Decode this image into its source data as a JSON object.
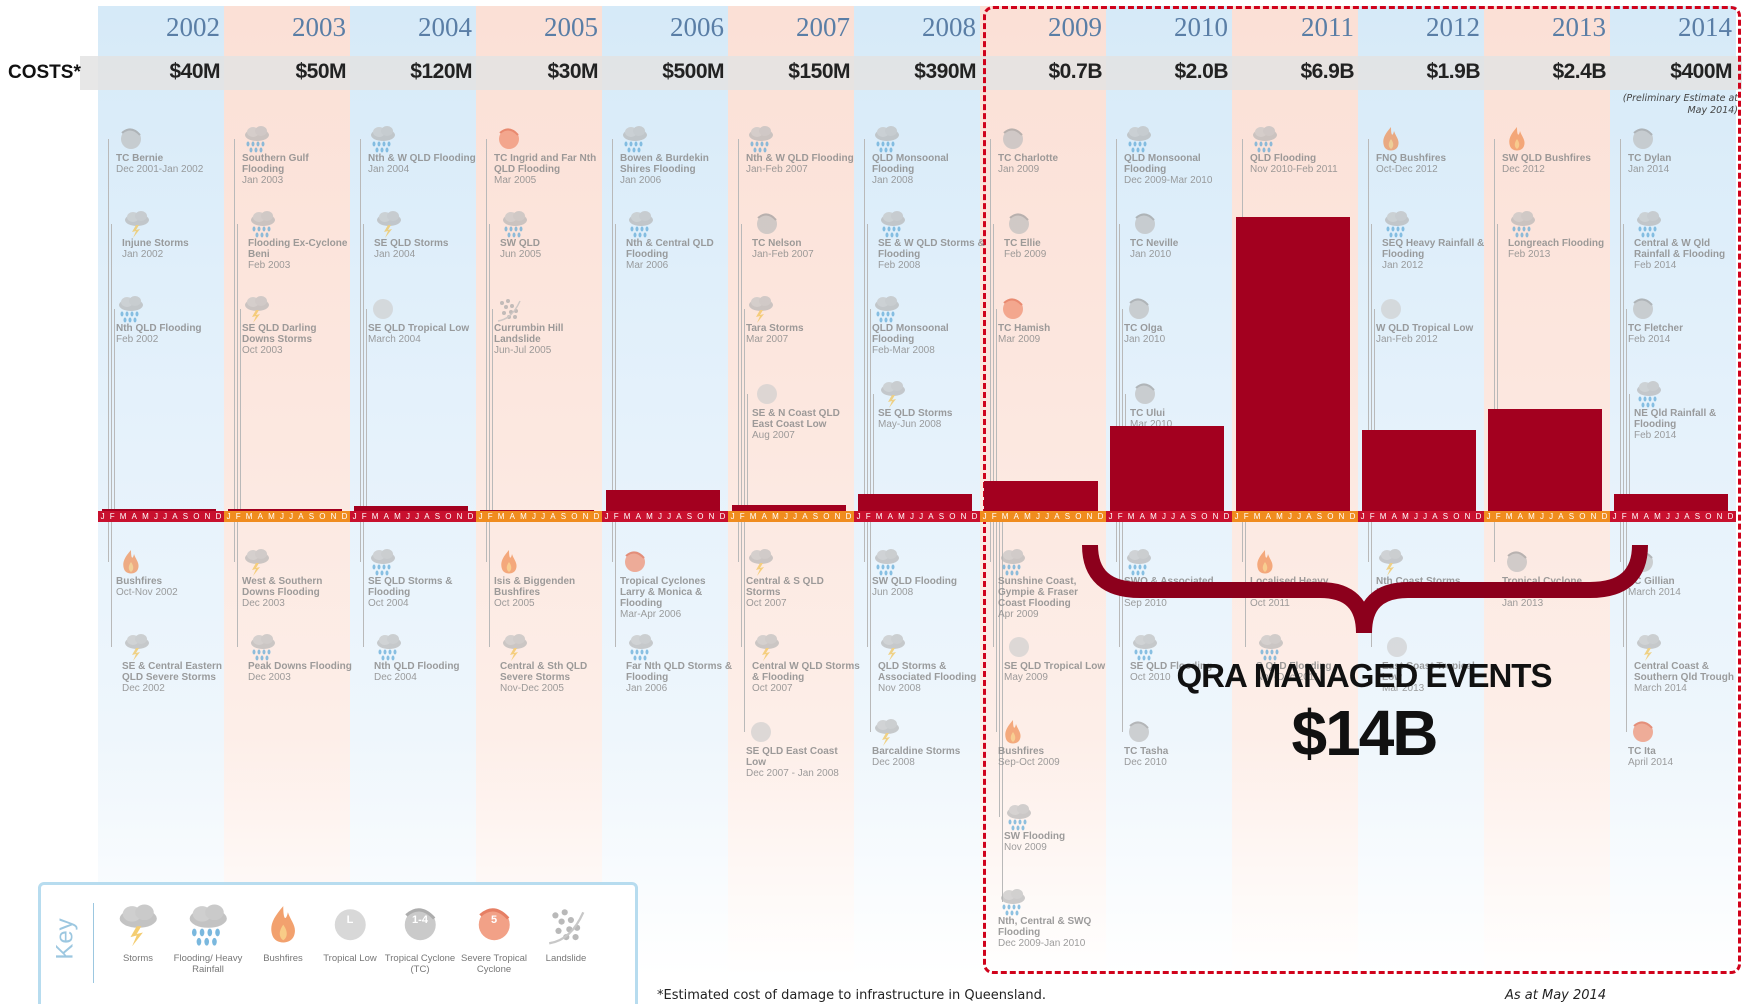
{
  "header": {
    "costs_label": "COSTS*",
    "preliminary_note": "(Preliminary  Estimate at May 2014)"
  },
  "months": [
    "J",
    "F",
    "M",
    "A",
    "M",
    "J",
    "J",
    "A",
    "S",
    "O",
    "N",
    "D"
  ],
  "years": [
    {
      "year": 2002,
      "cost": 40,
      "cost_label": "$40M",
      "above": [
        {
          "name": "TC Bernie",
          "date": "Dec 2001-Jan 2002",
          "kind": "tc"
        },
        {
          "name": "Injune Storms",
          "date": "Jan 2002",
          "kind": "storm"
        },
        {
          "name": "Nth QLD Flooding",
          "date": "Feb 2002",
          "kind": "flood"
        }
      ],
      "below": [
        {
          "name": "Bushfires",
          "date": "Oct-Nov 2002",
          "kind": "bushfire"
        },
        {
          "name": "SE & Central Eastern QLD Severe Storms",
          "date": "Dec 2002",
          "kind": "storm"
        }
      ]
    },
    {
      "year": 2003,
      "cost": 50,
      "cost_label": "$50M",
      "above": [
        {
          "name": "Southern Gulf Flooding",
          "date": "Jan 2003",
          "kind": "flood"
        },
        {
          "name": "Flooding Ex-Cyclone Beni",
          "date": "Feb 2003",
          "kind": "flood"
        },
        {
          "name": "SE QLD Darling Downs Storms",
          "date": "Oct 2003",
          "kind": "storm"
        }
      ],
      "below": [
        {
          "name": "West & Southern Downs Flooding",
          "date": "Dec 2003",
          "kind": "storm"
        },
        {
          "name": "Peak Downs Flooding",
          "date": "Dec 2003",
          "kind": "flood"
        }
      ]
    },
    {
      "year": 2004,
      "cost": 120,
      "cost_label": "$120M",
      "above": [
        {
          "name": "Nth & W QLD Flooding",
          "date": "Jan 2004",
          "kind": "flood"
        },
        {
          "name": "SE QLD Storms",
          "date": "Jan 2004",
          "kind": "storm"
        },
        {
          "name": "SE QLD Tropical Low",
          "date": "March 2004",
          "kind": "low"
        }
      ],
      "below": [
        {
          "name": "SE QLD Storms & Flooding",
          "date": "Oct 2004",
          "kind": "flood"
        },
        {
          "name": "Nth QLD Flooding",
          "date": "Dec 2004",
          "kind": "flood"
        }
      ]
    },
    {
      "year": 2005,
      "cost": 30,
      "cost_label": "$30M",
      "above": [
        {
          "name": "TC Ingrid and Far Nth QLD Flooding",
          "date": "Mar 2005",
          "kind": "severe-tc"
        },
        {
          "name": "SW QLD",
          "date": "Jun 2005",
          "kind": "flood"
        },
        {
          "name": "Currumbin Hill Landslide",
          "date": "Jun-Jul 2005",
          "kind": "landslide"
        }
      ],
      "below": [
        {
          "name": "Isis & Biggenden Bushfires",
          "date": "Oct 2005",
          "kind": "bushfire"
        },
        {
          "name": "Central & Sth QLD Severe Storms",
          "date": "Nov-Dec 2005",
          "kind": "storm"
        }
      ]
    },
    {
      "year": 2006,
      "cost": 500,
      "cost_label": "$500M",
      "above": [
        {
          "name": "Bowen & Burdekin Shires Flooding",
          "date": "Jan 2006",
          "kind": "flood"
        },
        {
          "name": "Nth & Central QLD Flooding",
          "date": "Mar 2006",
          "kind": "flood"
        }
      ],
      "below": [
        {
          "name": "Tropical Cyclones Larry & Monica & Flooding",
          "date": "Mar-Apr 2006",
          "kind": "severe-tc"
        },
        {
          "name": "Far Nth QLD Storms & Flooding",
          "date": "Jan 2006",
          "kind": "flood"
        }
      ]
    },
    {
      "year": 2007,
      "cost": 150,
      "cost_label": "$150M",
      "above": [
        {
          "name": "Nth & W QLD Flooding",
          "date": "Jan-Feb 2007",
          "kind": "flood"
        },
        {
          "name": "TC Nelson",
          "date": "Jan-Feb 2007",
          "kind": "tc"
        },
        {
          "name": "Tara Storms",
          "date": "Mar 2007",
          "kind": "storm"
        },
        {
          "name": "SE & N Coast QLD East Coast Low",
          "date": "Aug 2007",
          "kind": "low"
        }
      ],
      "below": [
        {
          "name": "Central & S QLD Storms",
          "date": "Oct 2007",
          "kind": "storm"
        },
        {
          "name": "Central W QLD Storms & Flooding",
          "date": "Oct 2007",
          "kind": "storm"
        },
        {
          "name": "SE QLD East Coast Low",
          "date": "Dec 2007 - Jan 2008",
          "kind": "low"
        }
      ]
    },
    {
      "year": 2008,
      "cost": 390,
      "cost_label": "$390M",
      "above": [
        {
          "name": "QLD Monsoonal Flooding",
          "date": "Jan 2008",
          "kind": "flood"
        },
        {
          "name": "SE & W QLD Storms & Flooding",
          "date": "Feb 2008",
          "kind": "flood"
        },
        {
          "name": "QLD Monsoonal Flooding",
          "date": "Feb-Mar 2008",
          "kind": "flood"
        },
        {
          "name": "SE QLD Storms",
          "date": "May-Jun 2008",
          "kind": "storm"
        }
      ],
      "below": [
        {
          "name": "SW QLD Flooding",
          "date": "Jun 2008",
          "kind": "flood"
        },
        {
          "name": "QLD Storms & Associated Flooding",
          "date": "Nov 2008",
          "kind": "storm"
        },
        {
          "name": "Barcaldine Storms",
          "date": "Dec 2008",
          "kind": "storm"
        }
      ]
    },
    {
      "year": 2009,
      "cost": 700,
      "cost_label": "$0.7B",
      "above": [
        {
          "name": "TC Charlotte",
          "date": "Jan 2009",
          "kind": "tc"
        },
        {
          "name": "TC Ellie",
          "date": "Feb 2009",
          "kind": "tc"
        },
        {
          "name": "TC Hamish",
          "date": "Mar 2009",
          "kind": "severe-tc"
        }
      ],
      "below": [
        {
          "name": "Sunshine Coast, Gympie & Fraser Coast Flooding",
          "date": "Apr 2009",
          "kind": "flood"
        },
        {
          "name": "SE QLD Tropical Low",
          "date": "May 2009",
          "kind": "low"
        },
        {
          "name": "Bushfires",
          "date": "Sep-Oct 2009",
          "kind": "bushfire"
        },
        {
          "name": "SW Flooding",
          "date": "Nov 2009",
          "kind": "flood"
        },
        {
          "name": "Nth, Central & SWQ Flooding",
          "date": "Dec 2009-Jan 2010",
          "kind": "flood"
        }
      ]
    },
    {
      "year": 2010,
      "cost": 2000,
      "cost_label": "$2.0B",
      "above": [
        {
          "name": "QLD Monsoonal Flooding",
          "date": "Dec 2009-Mar 2010",
          "kind": "flood"
        },
        {
          "name": "TC Neville",
          "date": "Jan 2010",
          "kind": "tc"
        },
        {
          "name": "TC Olga",
          "date": "Jan 2010",
          "kind": "tc"
        },
        {
          "name": "TC Ului",
          "date": "Mar 2010",
          "kind": "tc"
        }
      ],
      "below": [
        {
          "name": "SWQ & Associated Flooding",
          "date": "Sep 2010",
          "kind": "flood"
        },
        {
          "name": "SE QLD Flooding",
          "date": "Oct 2010",
          "kind": "flood"
        },
        {
          "name": "TC Tasha",
          "date": "Dec 2010",
          "kind": "tc"
        }
      ]
    },
    {
      "year": 2011,
      "cost": 6900,
      "cost_label": "$6.9B",
      "above": [
        {
          "name": "QLD Flooding",
          "date": "Nov 2010-Feb 2011",
          "kind": "flood"
        }
      ],
      "below": [
        {
          "name": "Localised Heavy Rainfall Nth QLD",
          "date": "Oct 2011",
          "kind": "bushfire"
        },
        {
          "name": "S QLD Flooding",
          "date": "Nov-Dec 2011",
          "kind": "flood"
        }
      ]
    },
    {
      "year": 2012,
      "cost": 1900,
      "cost_label": "$1.9B",
      "above": [
        {
          "name": "FNQ Bushfires",
          "date": "Oct-Dec 2012",
          "kind": "bushfire"
        },
        {
          "name": "SEQ Heavy Rainfall & Flooding",
          "date": "Jan 2012",
          "kind": "flood"
        },
        {
          "name": "W QLD Tropical Low",
          "date": "Jan-Feb 2012",
          "kind": "low"
        }
      ],
      "below": [
        {
          "name": "Nth Coast Storms",
          "date": "Mar 2012",
          "kind": "storm"
        },
        {
          "name": "East Coast Tropical Low",
          "date": "Mar 2013",
          "kind": "low"
        }
      ]
    },
    {
      "year": 2013,
      "cost": 2400,
      "cost_label": "$2.4B",
      "above": [
        {
          "name": "SW QLD Bushfires",
          "date": "Dec 2012",
          "kind": "bushfire"
        },
        {
          "name": "Longreach Flooding",
          "date": "Feb 2013",
          "kind": "flood"
        }
      ],
      "below": [
        {
          "name": "Tropical Cyclone Oswald and Flooding",
          "date": "Jan 2013",
          "kind": "tc"
        }
      ]
    },
    {
      "year": 2014,
      "cost": 400,
      "cost_label": "$400M",
      "above": [
        {
          "name": "TC Dylan",
          "date": "Jan 2014",
          "kind": "tc"
        },
        {
          "name": "Central & W Qld Rainfall & Flooding",
          "date": "Feb 2014",
          "kind": "flood"
        },
        {
          "name": "TC Fletcher",
          "date": "Feb 2014",
          "kind": "tc"
        },
        {
          "name": "NE Qld Rainfall & Flooding",
          "date": "Feb 2014",
          "kind": "flood"
        }
      ],
      "below": [
        {
          "name": "TC Gillian",
          "date": "March 2014",
          "kind": "tc"
        },
        {
          "name": "Central Coast & Southern Qld Trough",
          "date": "March 2014",
          "kind": "storm"
        },
        {
          "name": "TC Ita",
          "date": "April 2014",
          "kind": "severe-tc"
        }
      ]
    }
  ],
  "qra": {
    "title": "QRA MANAGED EVENTS",
    "total": "$14B"
  },
  "key": {
    "title": "Key",
    "items": [
      {
        "label": "Storms",
        "kind": "storm"
      },
      {
        "label": "Flooding/ Heavy Rainfall",
        "kind": "flood"
      },
      {
        "label": "Bushfires",
        "kind": "bushfire"
      },
      {
        "label": "Tropical Low",
        "kind": "low",
        "symbol": "L"
      },
      {
        "label": "Tropical Cyclone (TC)",
        "kind": "tc",
        "symbol": "1-4"
      },
      {
        "label": "Severe Tropical Cyclone",
        "kind": "severe-tc",
        "symbol": "5"
      },
      {
        "label": "Landslide",
        "kind": "landslide"
      }
    ]
  },
  "footnote": "*Estimated cost of damage to infrastructure in Queensland.",
  "as_at": "As at May 2014"
}
